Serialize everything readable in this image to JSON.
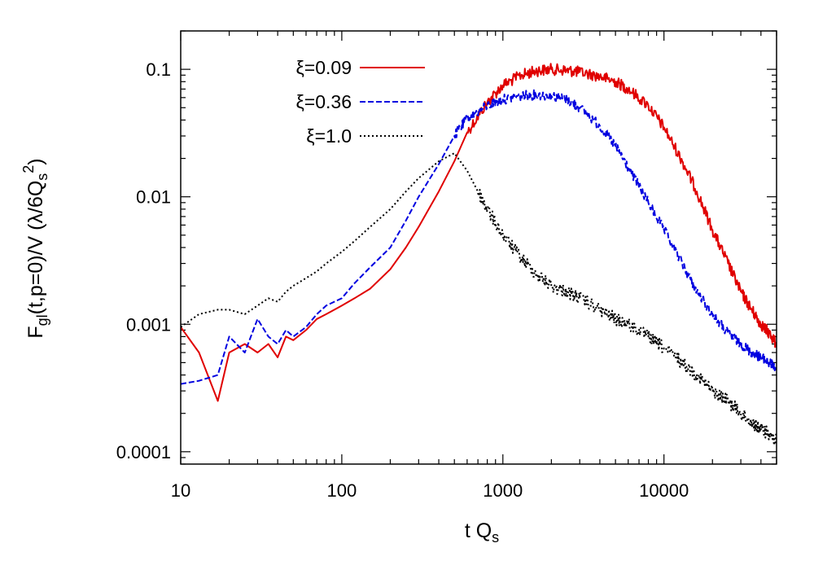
{
  "chart_data": {
    "type": "line",
    "title": "",
    "xlabel": "t Q",
    "xlabel_sub": "s",
    "ylabel": {
      "main": "F",
      "sub1": "gl",
      "mid": "(t,p=0)/V (λ/6Q",
      "sub2": "s",
      "sup2": "2",
      "end": ")"
    },
    "xscale": "log",
    "yscale": "log",
    "xlim": [
      10,
      50000
    ],
    "ylim": [
      8e-05,
      0.2
    ],
    "xticks": [
      {
        "value": 10,
        "label": "10"
      },
      {
        "value": 100,
        "label": "100"
      },
      {
        "value": 1000,
        "label": "1000"
      },
      {
        "value": 10000,
        "label": "10000"
      }
    ],
    "yticks": [
      {
        "value": 0.0001,
        "label": "0.0001"
      },
      {
        "value": 0.001,
        "label": "0.001"
      },
      {
        "value": 0.01,
        "label": "0.01"
      },
      {
        "value": 0.1,
        "label": "0.1"
      }
    ],
    "legend_position": "top-left",
    "series": [
      {
        "name": "ξ=0.09",
        "symbol": "ξ",
        "value_label": "=0.09",
        "color": "#e00000",
        "dash": "solid",
        "x": [
          10,
          13,
          17,
          20,
          25,
          30,
          35,
          40,
          45,
          50,
          60,
          70,
          80,
          100,
          120,
          150,
          200,
          250,
          300,
          400,
          500,
          600,
          800,
          1000,
          1300,
          1600,
          2000,
          2500,
          3000,
          4000,
          5000,
          6000,
          8000,
          10000,
          13000,
          16000,
          20000,
          25000,
          30000,
          35000,
          40000,
          45000,
          50000
        ],
        "y": [
          0.00095,
          0.0006,
          0.00025,
          0.0006,
          0.0007,
          0.0006,
          0.0007,
          0.00055,
          0.0008,
          0.00075,
          0.0009,
          0.0011,
          0.0012,
          0.0014,
          0.0016,
          0.0019,
          0.0027,
          0.004,
          0.0058,
          0.011,
          0.019,
          0.032,
          0.055,
          0.075,
          0.09,
          0.097,
          0.1,
          0.098,
          0.095,
          0.088,
          0.08,
          0.07,
          0.052,
          0.035,
          0.019,
          0.011,
          0.0055,
          0.003,
          0.0018,
          0.0013,
          0.001,
          0.00085,
          0.0007
        ]
      },
      {
        "name": "ξ=0.36",
        "symbol": "ξ",
        "value_label": "=0.36",
        "color": "#0000e0",
        "dash": "dashed",
        "x": [
          10,
          13,
          17,
          20,
          25,
          30,
          35,
          40,
          45,
          50,
          60,
          70,
          80,
          100,
          120,
          150,
          200,
          250,
          300,
          400,
          500,
          600,
          800,
          1000,
          1300,
          1600,
          2000,
          2500,
          3000,
          4000,
          5000,
          6000,
          8000,
          10000,
          13000,
          16000,
          20000,
          25000,
          30000,
          35000,
          40000,
          45000,
          50000
        ],
        "y": [
          0.00034,
          0.00036,
          0.0004,
          0.0008,
          0.0006,
          0.0011,
          0.0008,
          0.0007,
          0.0009,
          0.0008,
          0.00095,
          0.0012,
          0.0014,
          0.0016,
          0.0021,
          0.0028,
          0.004,
          0.0065,
          0.01,
          0.018,
          0.03,
          0.041,
          0.052,
          0.058,
          0.062,
          0.063,
          0.062,
          0.058,
          0.05,
          0.036,
          0.025,
          0.017,
          0.009,
          0.0055,
          0.003,
          0.0018,
          0.0012,
          0.00085,
          0.0007,
          0.0006,
          0.00055,
          0.0005,
          0.00045
        ]
      },
      {
        "name": "ξ=1.0",
        "symbol": "ξ",
        "value_label": "=1.0",
        "color": "#000000",
        "dash": "dotted",
        "x": [
          10,
          13,
          17,
          20,
          25,
          30,
          35,
          40,
          45,
          50,
          60,
          70,
          80,
          100,
          120,
          150,
          200,
          250,
          300,
          400,
          500,
          600,
          700,
          800,
          1000,
          1300,
          1600,
          2000,
          2500,
          3000,
          4000,
          5000,
          6000,
          8000,
          10000,
          13000,
          16000,
          20000,
          25000,
          30000,
          35000,
          40000,
          45000,
          50000
        ],
        "y": [
          0.00095,
          0.0012,
          0.0013,
          0.0013,
          0.0012,
          0.0014,
          0.0016,
          0.0015,
          0.0018,
          0.002,
          0.0023,
          0.0026,
          0.003,
          0.0037,
          0.0045,
          0.0058,
          0.008,
          0.011,
          0.014,
          0.019,
          0.022,
          0.016,
          0.011,
          0.008,
          0.005,
          0.0033,
          0.0025,
          0.002,
          0.0018,
          0.0016,
          0.0013,
          0.0011,
          0.001,
          0.0008,
          0.00065,
          0.0005,
          0.0004,
          0.0003,
          0.00025,
          0.0002,
          0.00017,
          0.00015,
          0.00014,
          0.00012
        ]
      }
    ]
  }
}
